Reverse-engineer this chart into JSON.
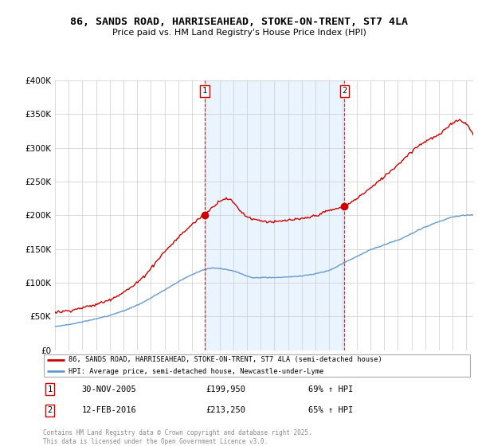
{
  "title1": "86, SANDS ROAD, HARRISEAHEAD, STOKE-ON-TRENT, ST7 4LA",
  "title2": "Price paid vs. HM Land Registry's House Price Index (HPI)",
  "legend_line1": "86, SANDS ROAD, HARRISEAHEAD, STOKE-ON-TRENT, ST7 4LA (semi-detached house)",
  "legend_line2": "HPI: Average price, semi-detached house, Newcastle-under-Lyme",
  "annotation1_date": "30-NOV-2005",
  "annotation1_price": "£199,950",
  "annotation1_hpi": "69% ↑ HPI",
  "annotation2_date": "12-FEB-2016",
  "annotation2_price": "£213,250",
  "annotation2_hpi": "65% ↑ HPI",
  "footer": "Contains HM Land Registry data © Crown copyright and database right 2025.\nThis data is licensed under the Open Government Licence v3.0.",
  "red_color": "#cc0000",
  "blue_color": "#6699cc",
  "shade_color": "#ddeeff",
  "ylim": [
    0,
    400000
  ],
  "yticks": [
    0,
    50000,
    100000,
    150000,
    200000,
    250000,
    300000,
    350000,
    400000
  ],
  "ytick_labels": [
    "£0",
    "£50K",
    "£100K",
    "£150K",
    "£200K",
    "£250K",
    "£300K",
    "£350K",
    "£400K"
  ],
  "sale1_x": 2005.917,
  "sale1_y": 199950,
  "sale2_x": 2016.117,
  "sale2_y": 213250,
  "xmin": 1995,
  "xmax": 2025.5
}
